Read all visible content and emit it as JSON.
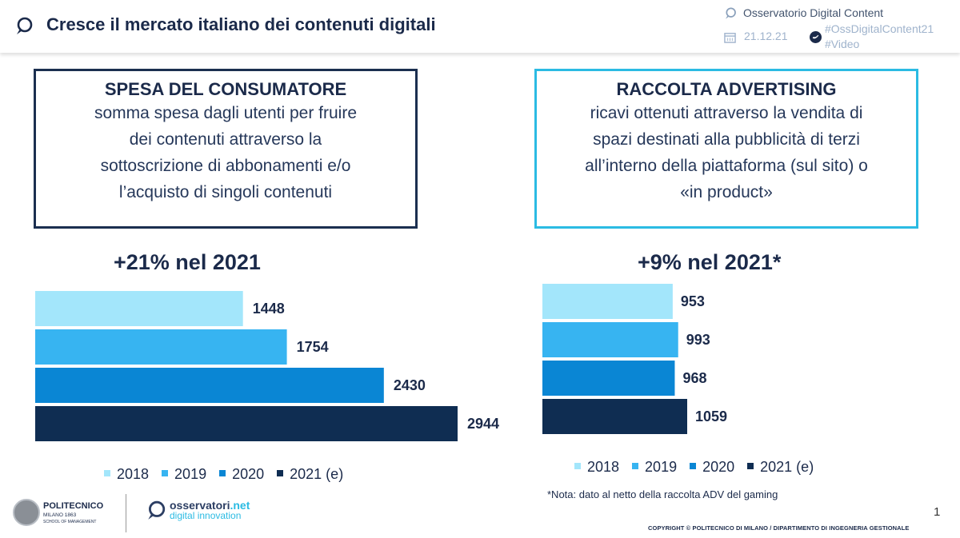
{
  "header": {
    "title": "Cresce il mercato italiano dei contenuti digitali",
    "observatory": "Osservatorio Digital Content",
    "date": "21.12.21",
    "hashtag1": "#OssDigitalContent21",
    "hashtag2": "#Video"
  },
  "box_left": {
    "heading": "SPESA DEL CONSUMATORE",
    "lines": [
      "somma spesa dagli utenti per fruire",
      "dei contenuti attraverso la",
      "sottoscrizione di abbonamenti e/o",
      "l’acquisto di singoli contenuti"
    ]
  },
  "box_right": {
    "heading": "RACCOLTA ADVERTISING",
    "lines": [
      "ricavi ottenuti attraverso la vendita di",
      "spazi destinati alla pubblicità di terzi",
      "all’interno della piattaforma (sul sito) o",
      "«in product»"
    ]
  },
  "chart_data": [
    {
      "type": "bar",
      "orientation": "horizontal",
      "title": "+21% nel 2021",
      "categories": [
        "2018",
        "2019",
        "2020",
        "2021 (e)"
      ],
      "values": [
        1448,
        1754,
        2430,
        2944
      ],
      "value_labels": [
        "1448",
        "1754",
        "2430",
        "2944"
      ],
      "colors": [
        "#a3e6fb",
        "#37b4f1",
        "#0a86d4",
        "#0f2d52"
      ],
      "xlim": [
        0,
        2944
      ],
      "legend": [
        "2018",
        "2019",
        "2020",
        "2021 (e)"
      ],
      "legend_position": "bottom"
    },
    {
      "type": "bar",
      "orientation": "horizontal",
      "title": "+9% nel 2021*",
      "categories": [
        "2018",
        "2019",
        "2020",
        "2021 (e)"
      ],
      "values": [
        953,
        993,
        968,
        1059
      ],
      "value_labels": [
        "953",
        "993",
        "968",
        "1059"
      ],
      "colors": [
        "#a3e6fb",
        "#37b4f1",
        "#0a86d4",
        "#0f2d52"
      ],
      "xlim": [
        0,
        1059
      ],
      "legend": [
        "2018",
        "2019",
        "2020",
        "2021 (e)"
      ],
      "legend_position": "bottom"
    }
  ],
  "note": "*Nota: dato al netto della raccolta ADV del gaming",
  "footer": {
    "page_number": "1",
    "copyright": "COPYRIGHT © POLITECNICO DI MILANO / DIPARTIMENTO DI INGEGNERIA GESTIONALE",
    "poli_name": "POLITECNICO",
    "poli_city": "MILANO 1863",
    "poli_school": "SCHOOL OF MANAGEMENT",
    "oss_name": "osservatori",
    "oss_net": ".net",
    "oss_tagline": "digital innovation"
  }
}
